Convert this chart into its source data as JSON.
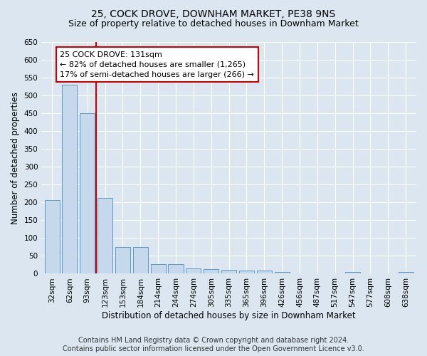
{
  "title1": "25, COCK DROVE, DOWNHAM MARKET, PE38 9NS",
  "title2": "Size of property relative to detached houses in Downham Market",
  "xlabel": "Distribution of detached houses by size in Downham Market",
  "ylabel": "Number of detached properties",
  "categories": [
    "32sqm",
    "62sqm",
    "93sqm",
    "123sqm",
    "153sqm",
    "184sqm",
    "214sqm",
    "244sqm",
    "274sqm",
    "305sqm",
    "335sqm",
    "365sqm",
    "396sqm",
    "426sqm",
    "456sqm",
    "487sqm",
    "517sqm",
    "547sqm",
    "577sqm",
    "608sqm",
    "638sqm"
  ],
  "values": [
    207,
    530,
    450,
    212,
    75,
    75,
    27,
    27,
    15,
    12,
    10,
    8,
    8,
    5,
    1,
    0,
    0,
    5,
    0,
    0,
    5
  ],
  "bar_color": "#c5d8ec",
  "bar_edge_color": "#5a9ac8",
  "annotation_text": "25 COCK DROVE: 131sqm\n← 82% of detached houses are smaller (1,265)\n17% of semi-detached houses are larger (266) →",
  "annotation_box_color": "#ffffff",
  "annotation_box_edge": "#cc0000",
  "vline_color": "#cc0000",
  "vline_x": 3.5,
  "ylim": [
    0,
    650
  ],
  "yticks": [
    0,
    50,
    100,
    150,
    200,
    250,
    300,
    350,
    400,
    450,
    500,
    550,
    600,
    650
  ],
  "footer_line1": "Contains HM Land Registry data © Crown copyright and database right 2024.",
  "footer_line2": "Contains public sector information licensed under the Open Government Licence v3.0.",
  "bg_color": "#dce6f0",
  "plot_bg_color": "#dce6f0",
  "title1_fontsize": 10,
  "title2_fontsize": 9,
  "xlabel_fontsize": 8.5,
  "ylabel_fontsize": 8.5,
  "tick_fontsize": 7.5,
  "footer_fontsize": 7,
  "annot_fontsize": 8
}
